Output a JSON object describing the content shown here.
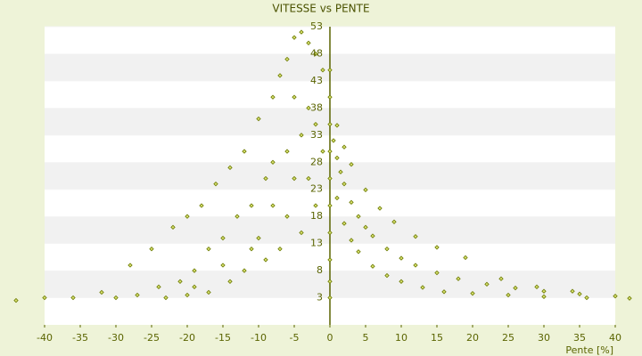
{
  "chart_data": {
    "type": "scatter",
    "title": "VITESSE vs PENTE",
    "x_label": "Pente [%]",
    "color": "#6b7a00",
    "xlim": [
      -40,
      40
    ],
    "xticks": [
      -40,
      -35,
      -30,
      -25,
      -20,
      -15,
      -10,
      -5,
      0,
      5,
      10,
      15,
      20,
      25,
      30,
      35,
      40
    ],
    "ylim": [
      -2,
      53
    ],
    "yticks": [
      53,
      48,
      43,
      38,
      33,
      28,
      23,
      18,
      13,
      8,
      3
    ],
    "grid": true,
    "x": [
      0,
      0,
      0,
      0,
      0,
      0,
      0,
      0,
      0,
      0,
      0.5,
      1,
      1.5,
      2,
      3,
      4,
      5,
      6,
      8,
      10,
      12,
      15,
      18,
      22,
      26,
      30,
      35,
      40,
      1,
      2,
      3,
      4,
      6,
      8,
      10,
      13,
      16,
      20,
      25,
      30,
      36,
      42,
      1,
      2,
      3,
      5,
      7,
      9,
      12,
      15,
      19,
      24,
      29,
      34,
      -1,
      -2,
      -3,
      -4,
      -5,
      -6,
      -7,
      -8,
      -10,
      -12,
      -14,
      -16,
      -18,
      -20,
      -22,
      -25,
      -28,
      -32,
      -36,
      -40,
      -44,
      -1,
      -2,
      -3,
      -4,
      -5,
      -6,
      -8,
      -9,
      -11,
      -13,
      -15,
      -17,
      -19,
      -21,
      -24,
      -27,
      -30,
      -2,
      -3,
      -4,
      -6,
      -7,
      -9,
      -10,
      -12,
      -14,
      -17,
      -20,
      -23,
      -5,
      -8,
      -11,
      -15,
      -19
    ],
    "values": [
      3,
      6,
      10,
      15,
      20,
      25,
      30,
      35,
      40,
      45,
      32,
      28.8,
      26.2,
      24,
      20.6,
      18,
      16,
      14.4,
      12,
      10.3,
      9,
      7.6,
      6.5,
      5.5,
      4.8,
      4.2,
      3.7,
      3.3,
      21.4,
      16.7,
      13.6,
      11.5,
      8.8,
      7.1,
      6,
      4.9,
      4.1,
      3.8,
      3.5,
      3.2,
      3,
      2.9,
      34.8,
      30.8,
      27.6,
      22.9,
      19.5,
      17,
      14.3,
      12.3,
      10.4,
      6.5,
      5,
      4.2,
      45,
      48,
      50,
      52,
      51,
      47,
      44,
      40,
      36,
      30,
      27,
      24,
      20,
      18,
      16,
      12,
      9,
      4,
      3,
      3,
      2.5,
      30,
      35,
      38,
      33,
      40,
      30,
      28,
      25,
      20,
      18,
      14,
      12,
      8,
      6,
      5,
      3.5,
      3,
      20,
      25,
      15,
      18,
      12,
      10,
      14,
      8,
      6,
      4,
      3.5,
      3,
      25,
      20,
      12,
      9,
      5
    ]
  }
}
